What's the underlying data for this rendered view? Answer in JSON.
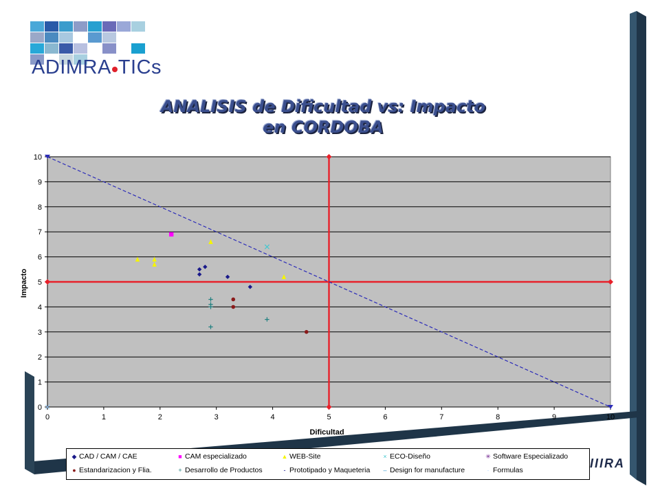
{
  "logo": {
    "text_a": "ADIMRA",
    "text_b": "TICs"
  },
  "title": {
    "line1": "ANALISIS de Dificultad vs: Impacto",
    "line2": "en CORDOBA"
  },
  "watermark": "IIIRA",
  "colors": {
    "plot_bg": "#c0c0c0",
    "quadrant_line": "#e8202a",
    "diagonal": "#2b2bb8",
    "frame": "#1f3548"
  },
  "chart_data": {
    "type": "scatter",
    "title": "ANALISIS de Dificultad vs: Impacto en CORDOBA",
    "xlabel": "Dificultad",
    "ylabel": "Impacto",
    "xlim": [
      0,
      10
    ],
    "ylim": [
      0,
      10
    ],
    "xticks": [
      "0",
      "1",
      "2",
      "3",
      "4",
      "5",
      "6",
      "7",
      "8",
      "9",
      "10"
    ],
    "yticks": [
      "0",
      "1",
      "2",
      "3",
      "4",
      "5",
      "6",
      "7",
      "8",
      "9",
      "10"
    ],
    "grid": "horizontal",
    "legend_position": "bottom",
    "reference_lines": [
      {
        "name": "vertical",
        "x": [
          5,
          5
        ],
        "y": [
          0,
          10
        ]
      },
      {
        "name": "horizontal",
        "x": [
          0,
          10
        ],
        "y": [
          5,
          5
        ]
      },
      {
        "name": "diagonal",
        "x": [
          0,
          10
        ],
        "y": [
          10,
          0
        ]
      }
    ],
    "series": [
      {
        "name": "CAD / CAM / CAE",
        "marker": "◆",
        "color": "#1a1a8a",
        "x": [
          2.7,
          2.8,
          2.7,
          3.2,
          3.6
        ],
        "y": [
          5.5,
          5.6,
          5.3,
          5.2,
          4.8
        ]
      },
      {
        "name": "CAM especializado",
        "marker": "■",
        "color": "#ff00ff",
        "x": [
          2.2
        ],
        "y": [
          6.9
        ]
      },
      {
        "name": "WEB-Site",
        "marker": "▲",
        "color": "#f5f500",
        "x": [
          1.6,
          1.9,
          1.9,
          2.9,
          4.2
        ],
        "y": [
          5.9,
          5.9,
          5.7,
          6.6,
          5.2
        ]
      },
      {
        "name": "ECO-Diseño",
        "marker": "×",
        "color": "#40c8d0",
        "x": [
          3.9
        ],
        "y": [
          6.4
        ]
      },
      {
        "name": "Software Especializado",
        "marker": "✳",
        "color": "#6a1a8a",
        "x": [],
        "y": []
      },
      {
        "name": "Estandarizacion y Flia.",
        "marker": "●",
        "color": "#8a1a1a",
        "x": [
          3.3,
          3.3,
          4.6
        ],
        "y": [
          4.3,
          4.0,
          3.0
        ]
      },
      {
        "name": "Desarrollo de Productos",
        "marker": "+",
        "color": "#208080",
        "x": [
          2.9,
          2.9,
          2.9,
          3.9,
          2.9
        ],
        "y": [
          4.3,
          4.1,
          4.0,
          3.5,
          3.2
        ]
      },
      {
        "name": "Prototipado y Maqueteria",
        "marker": "-",
        "color": "#000080",
        "x": [],
        "y": []
      },
      {
        "name": "Design for manufacture",
        "marker": "–",
        "color": "#3399cc",
        "x": [],
        "y": []
      },
      {
        "name": "Formulas",
        "marker": "·",
        "color": "#99ccff",
        "x": [
          0
        ],
        "y": [
          0
        ]
      }
    ]
  }
}
